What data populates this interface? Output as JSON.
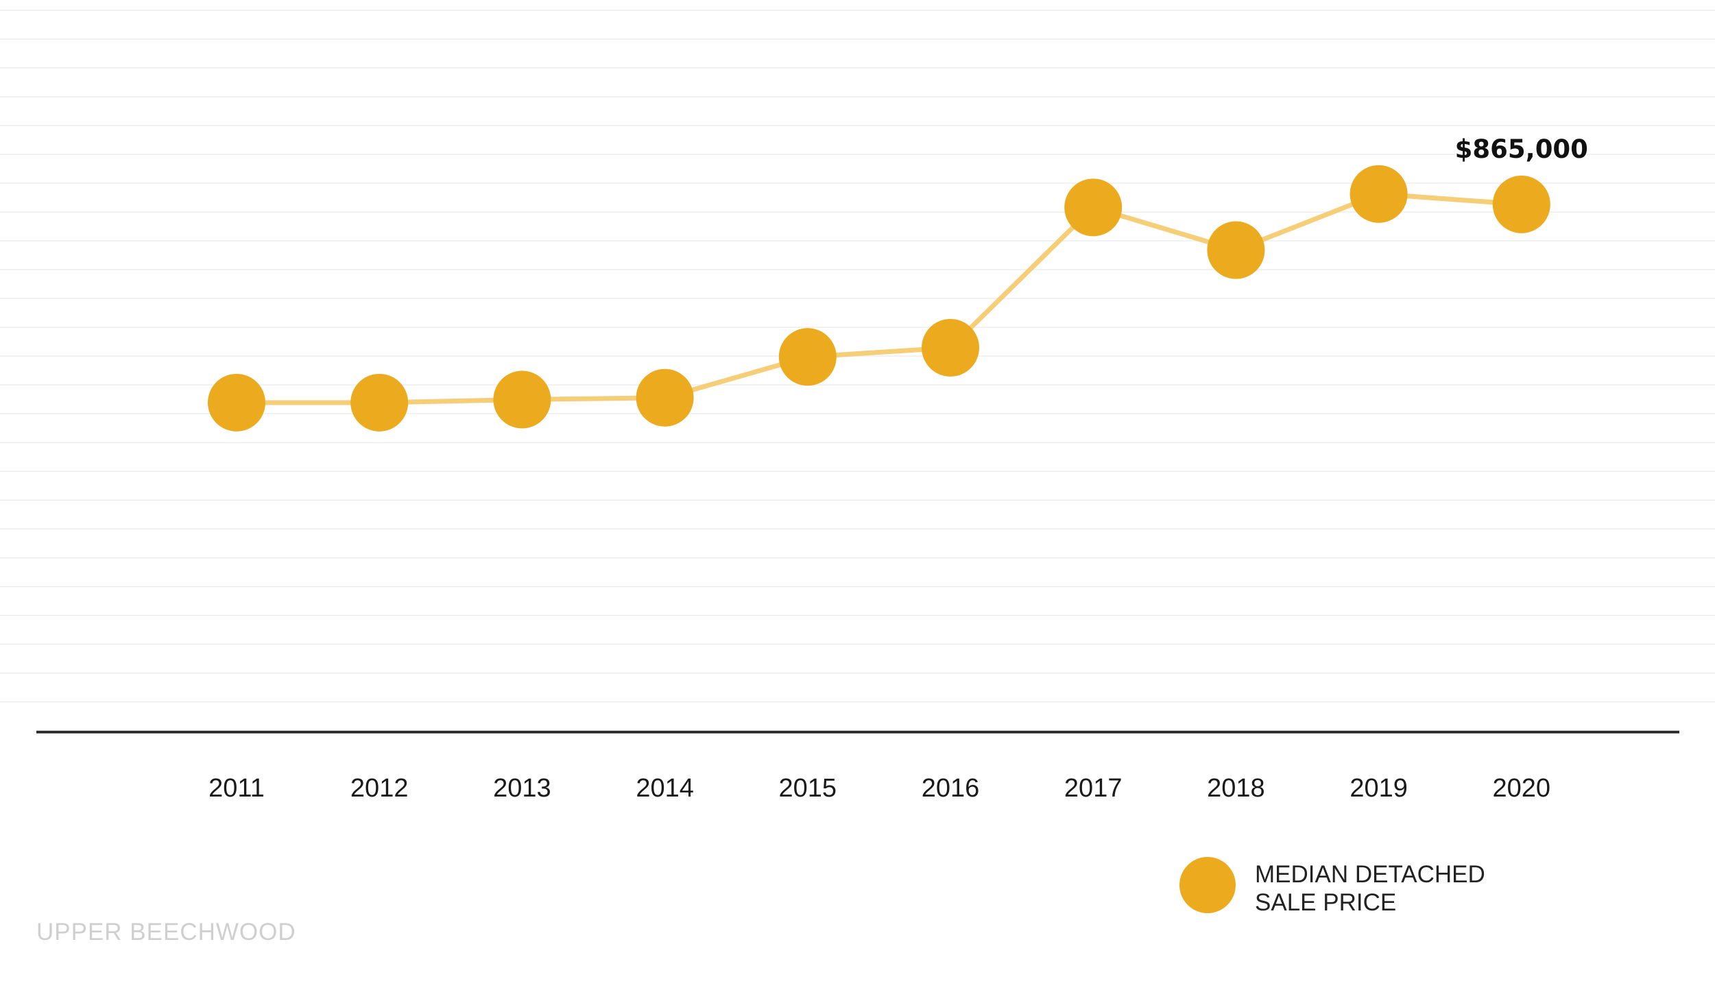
{
  "chart_data": {
    "type": "line",
    "x": [
      "2011",
      "2012",
      "2013",
      "2014",
      "2015",
      "2016",
      "2017",
      "2018",
      "2019",
      "2020"
    ],
    "series": [
      {
        "name": "MEDIAN DETACHED SALE PRICE",
        "values": [
          540000,
          540000,
          545000,
          548000,
          615000,
          630000,
          860000,
          790000,
          882000,
          865000
        ]
      }
    ],
    "ylim": [
      0,
      1200000
    ],
    "grid": true,
    "legend_position": "bottom-right",
    "data_labels": [
      {
        "x": "2020",
        "text": "$865,000"
      }
    ],
    "colors": {
      "marker": "#ECAB1F",
      "line": "#F6CE78",
      "axis": "#333333",
      "grid": "#F2F2F2"
    }
  },
  "legend": {
    "line1": "MEDIAN DETACHED",
    "line2": "SALE PRICE"
  },
  "caption": "UPPER BEECHWOOD"
}
